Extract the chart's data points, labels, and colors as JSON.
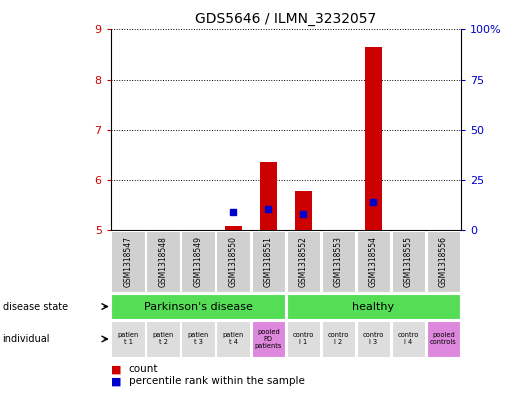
{
  "title": "GDS5646 / ILMN_3232057",
  "samples": [
    "GSM1318547",
    "GSM1318548",
    "GSM1318549",
    "GSM1318550",
    "GSM1318551",
    "GSM1318552",
    "GSM1318553",
    "GSM1318554",
    "GSM1318555",
    "GSM1318556"
  ],
  "count_values": [
    5.0,
    5.0,
    5.0,
    5.07,
    6.35,
    5.77,
    5.0,
    8.65,
    5.0,
    5.0
  ],
  "percentile_values": [
    null,
    null,
    null,
    5.35,
    5.42,
    5.32,
    null,
    5.55,
    null,
    null
  ],
  "ylim_left": [
    5,
    9
  ],
  "ylim_right": [
    0,
    100
  ],
  "yticks_left": [
    5,
    6,
    7,
    8,
    9
  ],
  "yticks_right": [
    0,
    25,
    50,
    75,
    100
  ],
  "ytick_labels_right": [
    "0",
    "25",
    "50",
    "75",
    "100%"
  ],
  "baseline": 5.0,
  "bar_color": "#cc0000",
  "dot_color": "#0000cc",
  "legend_count_label": "count",
  "legend_pct_label": "percentile rank within the sample",
  "background_color": "#ffffff",
  "left_tick_color": "#cc0000",
  "right_tick_color": "#0000cc",
  "sample_bg": "#d0d0d0",
  "pd_color": "#55dd55",
  "healthy_color": "#55dd55",
  "pooled_color": "#ee88ee",
  "ind_bg": "#dddddd",
  "ind_texts": [
    [
      "patien",
      "t 1"
    ],
    [
      "patien",
      "t 2"
    ],
    [
      "patien",
      "t 3"
    ],
    [
      "patien",
      "t 4"
    ],
    [
      "pooled",
      "PD",
      "patients"
    ],
    [
      "contro",
      "l 1"
    ],
    [
      "contro",
      "l 2"
    ],
    [
      "contro",
      "l 3"
    ],
    [
      "contro",
      "l 4"
    ],
    [
      "pooled",
      "controls"
    ]
  ],
  "ind_bg_colors": [
    "#dddddd",
    "#dddddd",
    "#dddddd",
    "#dddddd",
    "#dd88dd",
    "#dddddd",
    "#dddddd",
    "#dddddd",
    "#dddddd",
    "#dd88dd"
  ]
}
